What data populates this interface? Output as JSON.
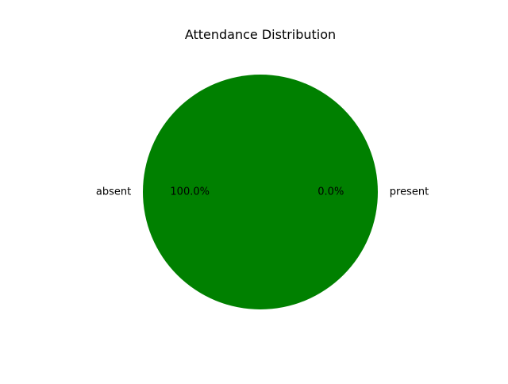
{
  "chart_data": {
    "type": "pie",
    "title": "Attendance Distribution",
    "slices": [
      {
        "label": "present",
        "value": 0,
        "pct_label": "0.0%",
        "color": "#ff0000"
      },
      {
        "label": "absent",
        "value": 100,
        "pct_label": "100.0%",
        "color": "#008000"
      }
    ],
    "start_angle_deg": 0,
    "direction": "counterclockwise",
    "legend": "none"
  }
}
